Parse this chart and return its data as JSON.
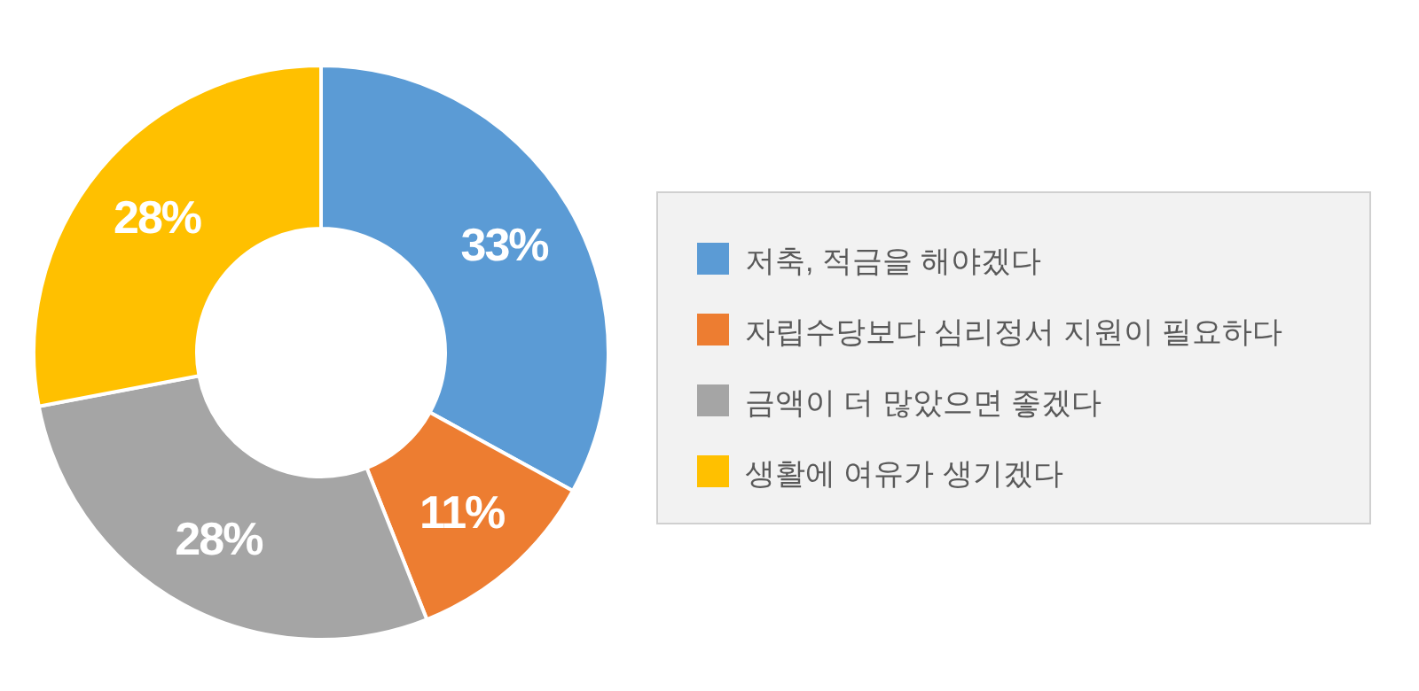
{
  "chart_data": {
    "type": "donut",
    "categories": [
      "저축, 적금을 해야겠다",
      "자립수당보다 심리정서 지원이 필요하다",
      "금액이 더 많았으면 좋겠다",
      "생활에 여유가 생기겠다"
    ],
    "values": [
      33,
      11,
      28,
      28
    ],
    "colors": [
      "#5b9bd5",
      "#ed7d31",
      "#a5a5a5",
      "#ffc000"
    ],
    "value_labels": [
      "33%",
      "11%",
      "28%",
      "28%"
    ],
    "legend": "right"
  }
}
